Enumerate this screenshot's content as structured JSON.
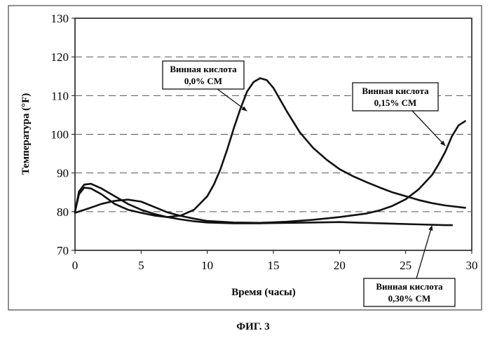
{
  "caption": "ФИГ. 3",
  "chart_data": {
    "type": "line",
    "xlabel": "Время (часы)",
    "ylabel": "Температура (°F)",
    "xlim": [
      0,
      30
    ],
    "ylim": [
      70,
      130
    ],
    "xticks": [
      0,
      5,
      10,
      15,
      20,
      25,
      30
    ],
    "yticks": [
      70,
      80,
      90,
      100,
      110,
      120,
      130
    ],
    "grid": "horizontal dashed",
    "series": [
      {
        "name": "Винная кислота 0,0% СМ",
        "x": [
          0,
          0.3,
          0.7,
          1.2,
          2,
          3,
          4,
          5,
          6,
          7,
          8,
          9,
          10,
          10.5,
          11,
          11.5,
          12,
          12.5,
          13,
          13.5,
          14,
          14.5,
          15,
          16,
          17,
          18,
          19,
          20,
          21,
          22,
          23,
          24,
          25,
          26,
          27,
          28,
          29,
          29.5
        ],
        "y": [
          80,
          84.5,
          86.2,
          86,
          84.5,
          82,
          80.5,
          79.7,
          79,
          78.6,
          79,
          80.5,
          84,
          87,
          91,
          96,
          101.5,
          106.5,
          111,
          113.5,
          114.5,
          114,
          112,
          106,
          100.5,
          96.5,
          93.5,
          91,
          89.2,
          87.7,
          86.3,
          85,
          84,
          83,
          82.2,
          81.6,
          81.2,
          81
        ]
      },
      {
        "name": "Винная кислота 0,15% СМ",
        "x": [
          0,
          1,
          2,
          3,
          4,
          5,
          6,
          7,
          8,
          9,
          10,
          12,
          14,
          16,
          18,
          20,
          22,
          23,
          24,
          25,
          26,
          27,
          27.5,
          28,
          28.5,
          29,
          29.5
        ],
        "y": [
          79.7,
          80.8,
          82,
          82.8,
          83.1,
          82.6,
          81.2,
          79.8,
          78.9,
          78.2,
          77.6,
          77.2,
          77.1,
          77.4,
          77.9,
          78.6,
          79.5,
          80.3,
          81.5,
          83.2,
          85.8,
          89.5,
          92.3,
          95.5,
          99.5,
          102.3,
          103.4
        ]
      },
      {
        "name": "Винная кислота 0,30% СМ",
        "x": [
          0,
          0.3,
          0.7,
          1.2,
          2,
          3,
          4,
          5,
          6,
          7,
          8,
          9,
          10,
          12,
          14,
          16,
          18,
          20,
          22,
          24,
          26,
          28,
          28.5
        ],
        "y": [
          80,
          85.2,
          87,
          87.2,
          86,
          84,
          82,
          80.5,
          79.4,
          78.6,
          78,
          77.5,
          77.2,
          77,
          77,
          77.1,
          77.2,
          77.3,
          77.1,
          76.9,
          76.7,
          76.5,
          76.5
        ]
      }
    ],
    "annotations": [
      {
        "line1": "Винная кислота",
        "line2": "0,0% СМ",
        "series": 0
      },
      {
        "line1": "Винная кислота",
        "line2": "0,15% СМ",
        "series": 1
      },
      {
        "line1": "Винная кислота",
        "line2": "0,30% СМ",
        "series": 2
      }
    ]
  }
}
